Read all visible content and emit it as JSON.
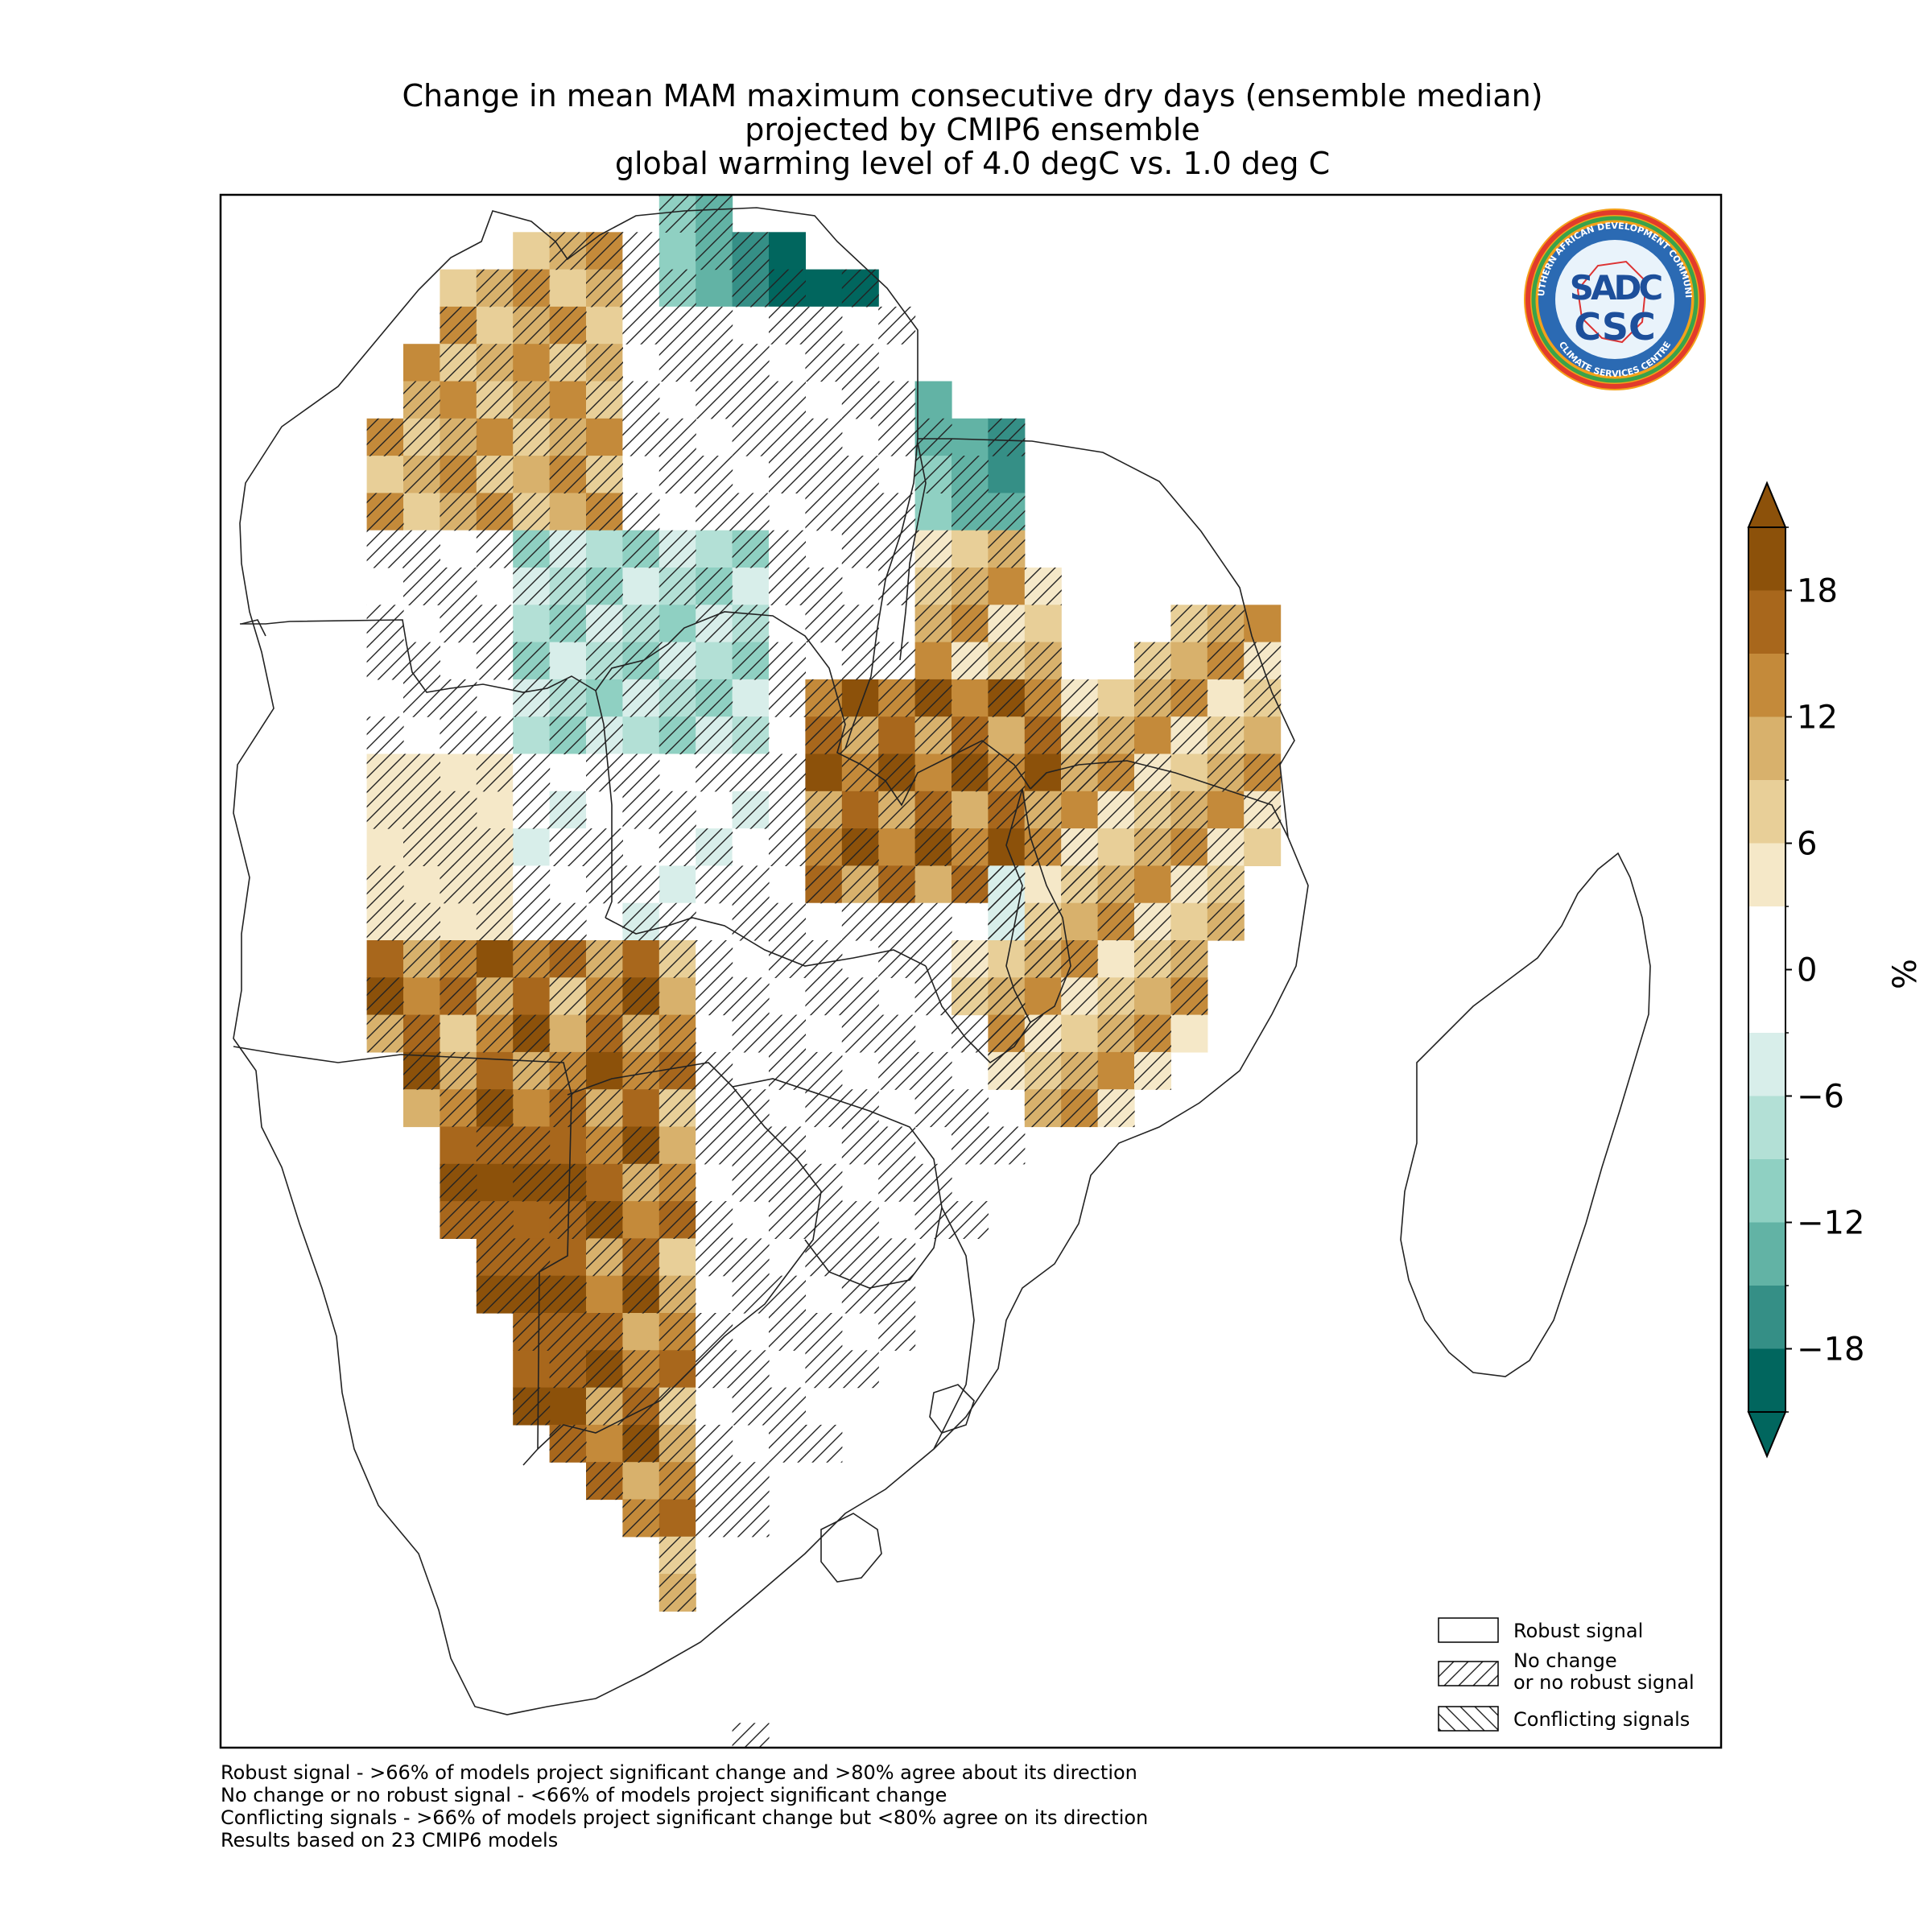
{
  "title": {
    "line1": "Change in mean MAM maximum consecutive dry days (ensemble median)",
    "line2": "projected by CMIP6 ensemble",
    "line3": "global warming level of 4.0 degC vs. 1.0 deg C"
  },
  "logo": {
    "text_top": "SOUTHERN AFRICAN DEVELOPMENT COMMUNITY",
    "text_bottom": "CLIMATE SERVICES CENTRE",
    "mark_top": "SADC",
    "mark_bottom": "CSC"
  },
  "colorbar": {
    "unit": "%",
    "ticks": [
      "18",
      "12",
      "6",
      "0",
      "−6",
      "−12",
      "−18"
    ],
    "levels": [
      21,
      18,
      15,
      12,
      9,
      6,
      3,
      -3,
      -6,
      -9,
      -12,
      -15,
      -18,
      -21
    ],
    "colors": [
      "#8c510a",
      "#a8671c",
      "#c48a3a",
      "#d8b16c",
      "#e8cf98",
      "#f5e8c8",
      "#ffffff",
      "#d8eeea",
      "#b3e0d6",
      "#8fd0c2",
      "#62b3a5",
      "#358f86",
      "#01665e"
    ],
    "over_color": "#8c510a",
    "under_color": "#01665e"
  },
  "legend": {
    "robust": "Robust signal",
    "no_change_1": "No change",
    "no_change_2": "or no robust signal",
    "conflicting": "Conflicting signals"
  },
  "footnotes": {
    "l1": "Robust signal - >66% of models project significant change and >80% agree about its direction",
    "l2": "No change or no robust signal - <66% of models project significant change",
    "l3": "Conflicting signals - >66% of models project significant change but <80% agree on its direction",
    "l4": "Results based on 23 CMIP6 models"
  }
}
